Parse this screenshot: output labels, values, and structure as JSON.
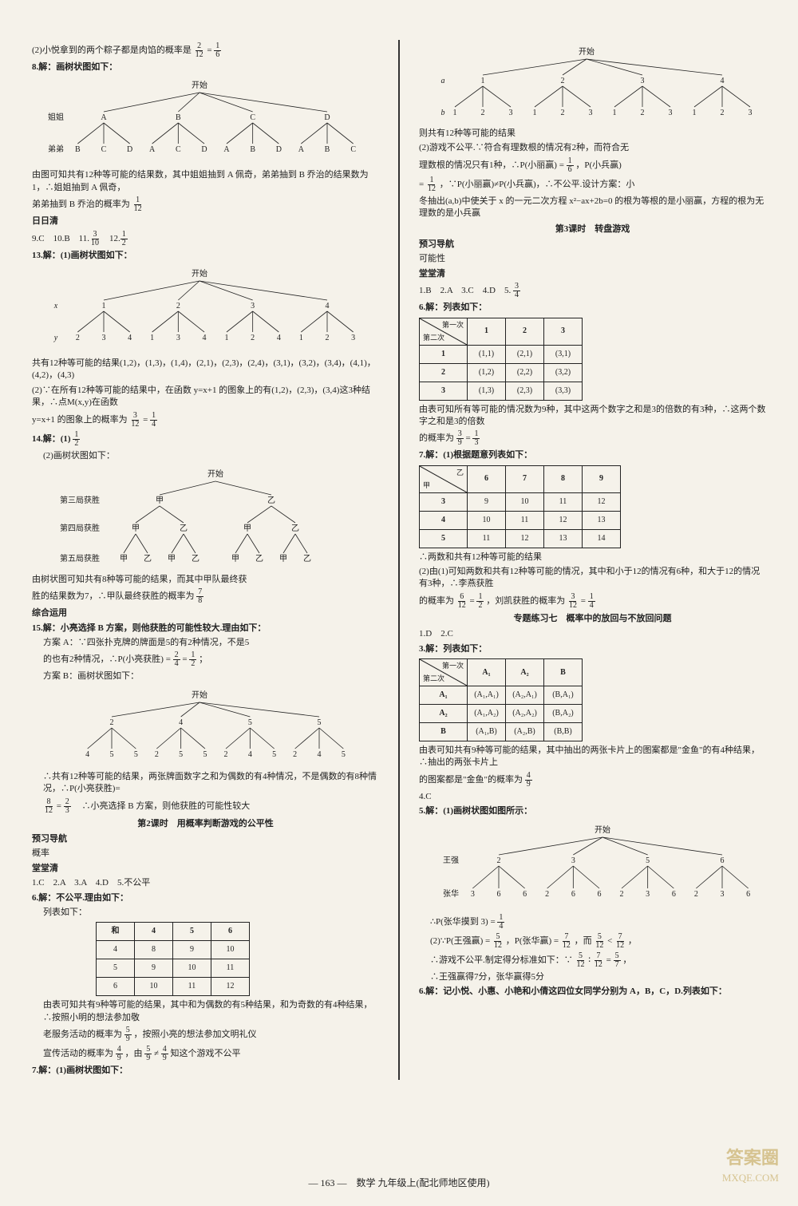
{
  "footer": {
    "page": "— 163 —",
    "subject": "数学 九年级上(配北师地区使用)"
  },
  "watermark": {
    "l1": "答案圈",
    "l2": "MXQE.COM"
  },
  "left": {
    "l1": "(2)小悦拿到的两个粽子都是肉馅的概率是",
    "l1f": {
      "n": "2",
      "d": "12"
    },
    "l1eq": " = ",
    "l1f2": {
      "n": "1",
      "d": "6"
    },
    "q8": "8.解：画树状图如下：",
    "tree8": {
      "top": "开始",
      "row1lbl": "姐姐",
      "row1": [
        "A",
        "B",
        "C",
        "D"
      ],
      "row2lbl": "弟弟",
      "row2": [
        [
          "B",
          "C",
          "D"
        ],
        [
          "A",
          "C",
          "D"
        ],
        [
          "A",
          "B",
          "D"
        ],
        [
          "A",
          "B",
          "C"
        ]
      ]
    },
    "q8t1": "由图可知共有12种等可能的结果数，其中姐姐抽到 A 佩奇，弟弟抽到 B 乔治的结果数为1，∴姐姐抽到 A 佩奇，",
    "q8t2": "弟弟抽到 B 乔治的概率为",
    "q8f": {
      "n": "1",
      "d": "12"
    },
    "rrq": "日日清",
    "q9": "9.C　10.B　11.",
    "q11f": {
      "n": "3",
      "d": "10"
    },
    "q12": "　12.",
    "q12f": {
      "n": "1",
      "d": "2"
    },
    "q13": "13.解：(1)画树状图如下：",
    "tree13": {
      "top": "开始",
      "xlbl": "x",
      "row1": [
        "1",
        "2",
        "3",
        "4"
      ],
      "ylbl": "y",
      "row2": [
        [
          "2",
          "3",
          "4"
        ],
        [
          "1",
          "3",
          "4"
        ],
        [
          "1",
          "2",
          "4"
        ],
        [
          "1",
          "2",
          "3"
        ]
      ]
    },
    "q13a": "共有12种等可能的结果(1,2)，(1,3)，(1,4)，(2,1)，(2,3)，(2,4)，(3,1)，(3,2)，(3,4)，(4,1)，(4,2)，(4,3)",
    "q13b": "(2)∵在所有12种等可能的结果中，在函数 y=x+1 的图象上的有(1,2)，(2,3)，(3,4)这3种结果，∴点M(x,y)在函数",
    "q13c": "y=x+1 的图象上的概率为",
    "q13f1": {
      "n": "3",
      "d": "12"
    },
    "q13eq": " = ",
    "q13f2": {
      "n": "1",
      "d": "4"
    },
    "q14": "14.解：(1)",
    "q14f": {
      "n": "1",
      "d": "2"
    },
    "q14b": "(2)画树状图如下：",
    "tree14": {
      "top": "开始",
      "r3": "第三局获胜",
      "l3": [
        "甲",
        "乙"
      ],
      "r4": "第四局获胜",
      "l4": [
        [
          "甲",
          "乙"
        ],
        [
          "甲",
          "乙"
        ]
      ],
      "r5": "第五局获胜",
      "l5": [
        [
          "甲",
          "乙"
        ],
        [
          "甲",
          "乙"
        ],
        [
          "甲",
          "乙"
        ],
        [
          "甲",
          "乙"
        ]
      ]
    },
    "q14c": "由树状图可知共有8种等可能的结果，而其中甲队最终获",
    "q14d": "胜的结果数为7，∴甲队最终获胜的概率为",
    "q14f2": {
      "n": "7",
      "d": "8"
    },
    "zhyx": "综合运用",
    "q15": "15.解：小亮选择 B 方案，则他获胜的可能性较大.理由如下：",
    "q15a": "方案 A：∵四张扑克牌的牌面是5的有2种情况，不是5",
    "q15b": "的也有2种情况，∴P(小亮获胜) = ",
    "q15f1": {
      "n": "2",
      "d": "4"
    },
    "q15eq": " = ",
    "q15f2": {
      "n": "1",
      "d": "2"
    },
    "q15semi": "；",
    "q15c": "方案 B：画树状图如下：",
    "tree15": {
      "top": "开始",
      "row1": [
        "2",
        "4",
        "5",
        "5"
      ],
      "row2": [
        [
          "4",
          "5",
          "5"
        ],
        [
          "2",
          "5",
          "5"
        ],
        [
          "2",
          "4",
          "5"
        ],
        [
          "2",
          "4",
          "5"
        ]
      ]
    },
    "q15d": "∴共有12种等可能的结果，两张牌面数字之和为偶数的有4种情况，不是偶数的有8种情况，∴P(小亮获胜)=",
    "q15f3": {
      "n": "8",
      "d": "12"
    },
    "q15eq2": " = ",
    "q15f4": {
      "n": "2",
      "d": "3"
    },
    "q15e": "　∴小亮选择 B 方案，则他获胜的可能性较大",
    "sec2": "第2课时　用概率判断游戏的公平性",
    "yxdh": "预习导航",
    "gl": "概率",
    "ttq": "堂堂清",
    "q1": "1.C　2.A　3.A　4.D　5.不公平",
    "q6": "6.解：不公平.理由如下：",
    "q6a": "列表如下：",
    "t6": {
      "head": [
        "和",
        "4",
        "5",
        "6"
      ],
      "rows": [
        [
          "4",
          "8",
          "9",
          "10"
        ],
        [
          "5",
          "9",
          "10",
          "11"
        ],
        [
          "6",
          "10",
          "11",
          "12"
        ]
      ]
    },
    "q6b": "由表可知共有9种等可能的结果，其中和为偶数的有5种结果，和为奇数的有4种结果，∴按照小明的想法参加敬",
    "q6c": "老服务活动的概率为",
    "q6f1": {
      "n": "5",
      "d": "9"
    },
    "q6c2": "，按照小亮的想法参加文明礼仪",
    "q6d": "宣传活动的概率为",
    "q6f2": {
      "n": "4",
      "d": "9"
    },
    "q6e": "，由",
    "q6f3": {
      "n": "5",
      "d": "9"
    },
    "q6neq": " ≠ ",
    "q6f4": {
      "n": "4",
      "d": "9"
    },
    "q6f": "知这个游戏不公平",
    "q7": "7.解：(1)画树状图如下："
  },
  "right": {
    "tree7": {
      "top": "开始",
      "albl": "a",
      "row1": [
        "1",
        "2",
        "3",
        "4"
      ],
      "blbl": "b",
      "row2": [
        [
          "1",
          "2",
          "3"
        ],
        [
          "1",
          "2",
          "3"
        ],
        [
          "1",
          "2",
          "3"
        ],
        [
          "1",
          "2",
          "3"
        ]
      ]
    },
    "r7a": "则共有12种等可能的结果",
    "r7b": "(2)游戏不公平.∵符合有理数根的情况有2种，而符合无",
    "r7c": "理数根的情况只有1种，∴P(小丽赢) = ",
    "r7f1": {
      "n": "1",
      "d": "6"
    },
    "r7c2": "，P(小兵赢)",
    "r7d": "= ",
    "r7f2": {
      "n": "1",
      "d": "12"
    },
    "r7d2": "，∵P(小丽赢)≠P(小兵赢)，∴不公平.设计方案：小",
    "r7e": "冬抽出(a,b)中使关于 x 的一元二次方程 x²−ax+2b=0 的根为等根的是小丽赢，方程的根为无理数的是小兵赢",
    "sec3": "第3课时　转盘游戏",
    "yxdh": "预习导航",
    "knx": "可能性",
    "ttq": "堂堂清",
    "q1": "1.B　2.A　3.C　4.D　5.",
    "q5f": {
      "n": "3",
      "d": "4"
    },
    "q6": "6.解：列表如下：",
    "t6": {
      "diag": {
        "top": "第一次",
        "bot": "第二次"
      },
      "cols": [
        "1",
        "2",
        "3"
      ],
      "rows": [
        [
          "1",
          "(1,1)",
          "(2,1)",
          "(3,1)"
        ],
        [
          "2",
          "(1,2)",
          "(2,2)",
          "(3,2)"
        ],
        [
          "3",
          "(1,3)",
          "(2,3)",
          "(3,3)"
        ]
      ]
    },
    "r6a": "由表可知所有等可能的情况数为9种，其中这两个数字之和是3的倍数的有3种，∴这两个数字之和是3的倍数",
    "r6b": "的概率为",
    "r6f1": {
      "n": "3",
      "d": "9"
    },
    "r6eq": " = ",
    "r6f2": {
      "n": "1",
      "d": "3"
    },
    "q7": "7.解：(1)根据题意列表如下：",
    "t7": {
      "diag": {
        "top": "乙",
        "bot": "甲"
      },
      "cols": [
        "6",
        "7",
        "8",
        "9"
      ],
      "rows": [
        [
          "3",
          "9",
          "10",
          "11",
          "12"
        ],
        [
          "4",
          "10",
          "11",
          "12",
          "13"
        ],
        [
          "5",
          "11",
          "12",
          "13",
          "14"
        ]
      ]
    },
    "r7g": "∴两数和共有12种等可能的结果",
    "r7h": "(2)由(1)可知两数和共有12种等可能的情况，其中和小于12的情况有6种，和大于12的情况有3种，∴李燕获胜",
    "r7i": "的概率为",
    "r7f3": {
      "n": "6",
      "d": "12"
    },
    "r7i2": " = ",
    "r7f4": {
      "n": "1",
      "d": "2"
    },
    "r7i3": "，刘凯获胜的概率为",
    "r7f5": {
      "n": "3",
      "d": "12"
    },
    "r7i4": " = ",
    "r7f6": {
      "n": "1",
      "d": "4"
    },
    "zt7": "专题练习七　概率中的放回与不放回问题",
    "z1": "1.D　2.C",
    "z3": "3.解：列表如下：",
    "t3": {
      "diag": {
        "top": "第一次",
        "bot": "第二次"
      },
      "cols": [
        "A₁",
        "A₂",
        "B"
      ],
      "rows": [
        [
          "A₁",
          "(A₁,A₁)",
          "(A₂,A₁)",
          "(B,A₁)"
        ],
        [
          "A₂",
          "(A₁,A₂)",
          "(A₂,A₂)",
          "(B,A₂)"
        ],
        [
          "B",
          "(A₁,B)",
          "(A₂,B)",
          "(B,B)"
        ]
      ]
    },
    "z3a": "由表可知共有9种等可能的结果，其中抽出的两张卡片上的图案都是\"金鱼\"的有4种结果，∴抽出的两张卡片上",
    "z3b": "的图案都是\"金鱼\"的概率为",
    "z3f": {
      "n": "4",
      "d": "9"
    },
    "z4": "4.C",
    "z5": "5.解：(1)画树状图如图所示：",
    "tree5": {
      "top": "开始",
      "wq": "王强",
      "row1": [
        "2",
        "3",
        "5",
        "6"
      ],
      "zh": "张华",
      "row2": [
        [
          "3",
          "6",
          "6"
        ],
        [
          "2",
          "6",
          "6"
        ],
        [
          "2",
          "3",
          "6"
        ],
        [
          "2",
          "3",
          "6"
        ]
      ]
    },
    "z5a": "∴P(张华摸到 3) = ",
    "z5f": {
      "n": "1",
      "d": "4"
    },
    "z5b": "(2)∵P(王强赢) = ",
    "z5f2": {
      "n": "5",
      "d": "12"
    },
    "z5b2": "，P(张华赢) = ",
    "z5f3": {
      "n": "7",
      "d": "12"
    },
    "z5b3": "，而",
    "z5f4": {
      "n": "5",
      "d": "12"
    },
    "z5lt": " < ",
    "z5f5": {
      "n": "7",
      "d": "12"
    },
    "z5comma": "，",
    "z5c": "∴游戏不公平.制定得分标准如下：∵",
    "z5f6": {
      "n": "5",
      "d": "12"
    },
    "z5col": " ∶ ",
    "z5f7": {
      "n": "7",
      "d": "12"
    },
    "z5eq": " = ",
    "z5f8": {
      "n": "5",
      "d": "7"
    },
    "z5comma2": "，",
    "z5d": "∴王强赢得7分，张华赢得5分",
    "z6": "6.解：记小悦、小惠、小艳和小倩这四位女同学分别为 A，B，C，D.列表如下："
  }
}
